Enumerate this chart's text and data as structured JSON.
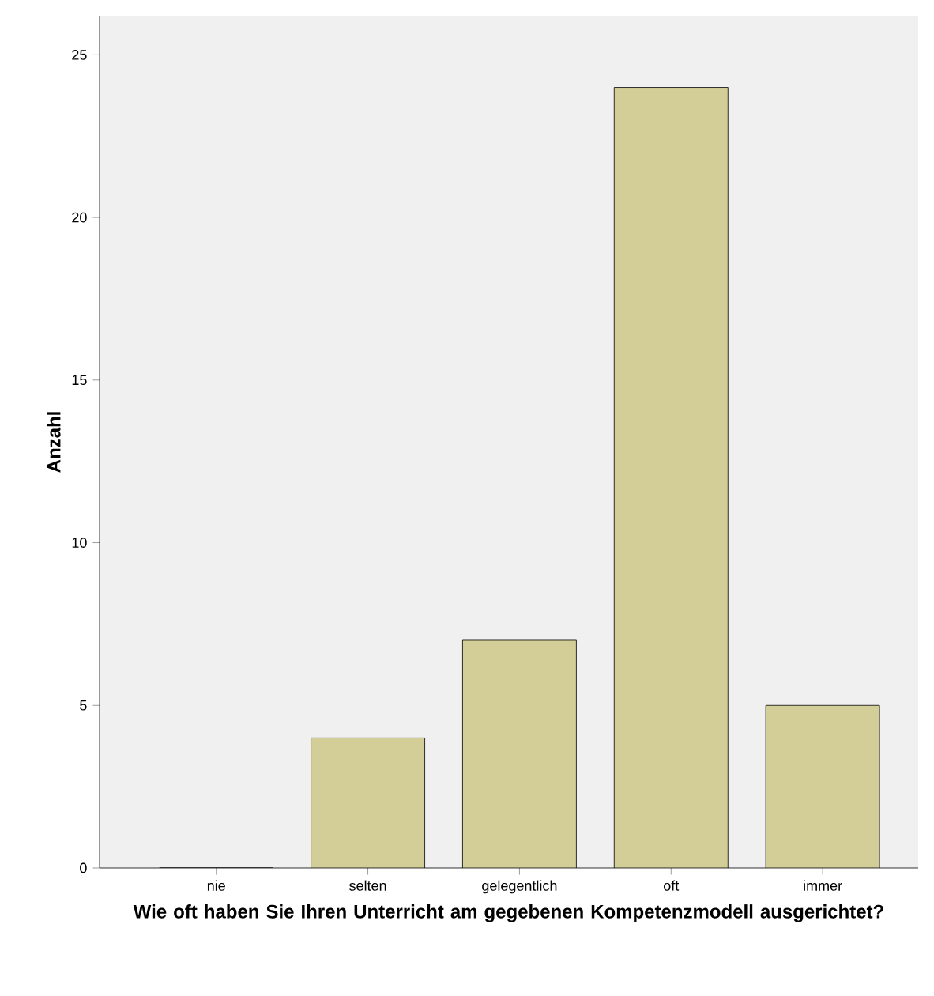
{
  "chart_data": {
    "type": "bar",
    "xlabel": "Wie oft haben Sie Ihren Unterricht am gegebenen Kompetenzmodell ausgerichtet?",
    "ylabel": "Anzahl",
    "categories": [
      "nie",
      "selten",
      "gelegentlich",
      "oft",
      "immer"
    ],
    "values": [
      0,
      4,
      7,
      24,
      5
    ],
    "color": "#d3ce97",
    "ylim": [
      0,
      26.2
    ],
    "yticks": [
      0,
      5,
      10,
      15,
      20,
      25
    ],
    "grid": false
  }
}
